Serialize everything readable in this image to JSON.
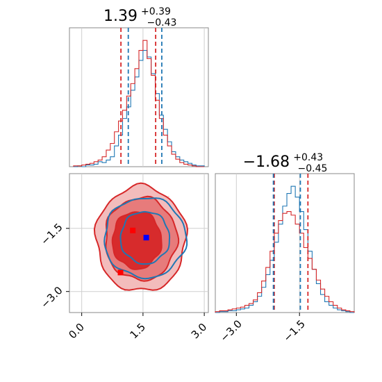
{
  "chart_data": [
    {
      "type": "histogram",
      "panel": "top-left marginal",
      "title_value": "1.39",
      "title_upper": "+0.39",
      "title_lower": "−0.43",
      "xlim": [
        -0.3,
        3.1
      ],
      "grid": true,
      "series": [
        {
          "color": "#1f77b4",
          "bin_edges": [
            -0.2,
            -0.1,
            0.0,
            0.1,
            0.2,
            0.3,
            0.4,
            0.5,
            0.6,
            0.7,
            0.8,
            0.9,
            1.0,
            1.1,
            1.2,
            1.3,
            1.4,
            1.5,
            1.6,
            1.7,
            1.8,
            1.9,
            2.0,
            2.1,
            2.2,
            2.3,
            2.4,
            2.5,
            2.6,
            2.7,
            2.8,
            2.9,
            3.0
          ],
          "counts": [
            0,
            1,
            0,
            2,
            2,
            3,
            6,
            5,
            8,
            12,
            25,
            38,
            58,
            72,
            92,
            108,
            128,
            140,
            132,
            112,
            88,
            62,
            45,
            30,
            18,
            12,
            8,
            6,
            4,
            2,
            1,
            1
          ]
        },
        {
          "color": "#d62728",
          "bin_edges": [
            -0.2,
            -0.1,
            0.0,
            0.1,
            0.2,
            0.3,
            0.4,
            0.5,
            0.6,
            0.7,
            0.8,
            0.9,
            1.0,
            1.1,
            1.2,
            1.3,
            1.4,
            1.5,
            1.6,
            1.7,
            1.8,
            1.9,
            2.0,
            2.1,
            2.2,
            2.3,
            2.4,
            2.5,
            2.6,
            2.7,
            2.8,
            2.9,
            3.0
          ],
          "counts": [
            1,
            1,
            2,
            3,
            4,
            6,
            8,
            12,
            20,
            28,
            42,
            55,
            68,
            85,
            100,
            118,
            140,
            152,
            130,
            110,
            80,
            58,
            38,
            25,
            15,
            9,
            5,
            3,
            2,
            1,
            0,
            0
          ]
        }
      ],
      "quantile_lines": [
        {
          "color": "#d62728",
          "x": 0.96
        },
        {
          "color": "#1f77b4",
          "x": 1.14
        },
        {
          "color": "#d62728",
          "x": 1.81
        },
        {
          "color": "#1f77b4",
          "x": 1.96
        }
      ]
    },
    {
      "type": "histogram",
      "panel": "bottom-right marginal",
      "title_value": "−1.68",
      "title_upper": "+0.43",
      "title_lower": "−0.45",
      "xlim": [
        -3.5,
        -0.2
      ],
      "xticks": [
        -3.0,
        -1.5
      ],
      "xtick_labels": [
        "−3.0",
        "−1.5"
      ],
      "grid": true,
      "series": [
        {
          "color": "#1f77b4",
          "bin_edges": [
            -3.5,
            -3.4,
            -3.3,
            -3.2,
            -3.1,
            -3.0,
            -2.9,
            -2.8,
            -2.7,
            -2.6,
            -2.5,
            -2.4,
            -2.3,
            -2.2,
            -2.1,
            -2.0,
            -1.9,
            -1.8,
            -1.7,
            -1.6,
            -1.5,
            -1.4,
            -1.3,
            -1.2,
            -1.1,
            -1.0,
            -0.9,
            -0.8,
            -0.7,
            -0.6,
            -0.5,
            -0.4,
            -0.3,
            -0.2
          ],
          "counts": [
            0,
            1,
            1,
            2,
            2,
            3,
            4,
            5,
            8,
            12,
            18,
            28,
            42,
            58,
            78,
            98,
            118,
            132,
            140,
            128,
            112,
            92,
            68,
            48,
            32,
            20,
            12,
            8,
            5,
            3,
            2,
            1,
            0
          ]
        },
        {
          "color": "#d62728",
          "bin_edges": [
            -3.5,
            -3.4,
            -3.3,
            -3.2,
            -3.1,
            -3.0,
            -2.9,
            -2.8,
            -2.7,
            -2.6,
            -2.5,
            -2.4,
            -2.3,
            -2.2,
            -2.1,
            -2.0,
            -1.9,
            -1.8,
            -1.7,
            -1.6,
            -1.5,
            -1.4,
            -1.3,
            -1.2,
            -1.1,
            -1.0,
            -0.9,
            -0.8,
            -0.7,
            -0.6,
            -0.5,
            -0.4,
            -0.3,
            -0.2
          ],
          "counts": [
            1,
            2,
            2,
            3,
            4,
            5,
            6,
            8,
            10,
            14,
            22,
            35,
            50,
            68,
            88,
            102,
            110,
            112,
            108,
            98,
            88,
            72,
            60,
            48,
            36,
            26,
            18,
            12,
            8,
            5,
            3,
            2,
            1
          ]
        }
      ],
      "quantile_lines": [
        {
          "color": "#d62728",
          "x": -2.1
        },
        {
          "color": "#1f77b4",
          "x": -2.12
        },
        {
          "color": "#1f77b4",
          "x": -1.48
        },
        {
          "color": "#d62728",
          "x": -1.3
        }
      ]
    },
    {
      "type": "contour",
      "panel": "bottom-left joint",
      "xlim": [
        -0.3,
        3.1
      ],
      "ylim": [
        -3.5,
        -0.2
      ],
      "xticks": [
        0.0,
        1.5,
        3.0
      ],
      "xtick_labels": [
        "0.0",
        "1.5",
        "3.0"
      ],
      "yticks": [
        -1.5,
        -3.0
      ],
      "ytick_labels": [
        "−1.5",
        "−3.0"
      ],
      "grid": true,
      "series": [
        {
          "color": "#d62728",
          "fill_levels": [
            "#f2b8b8",
            "#e67777",
            "#d62728"
          ],
          "contours": [
            {
              "cx": 1.45,
              "cy": -1.75,
              "rx": 1.1,
              "ry": 1.25
            },
            {
              "cx": 1.45,
              "cy": -1.75,
              "rx": 0.88,
              "ry": 0.98
            },
            {
              "cx": 1.35,
              "cy": -1.78,
              "rx": 0.6,
              "ry": 0.68
            }
          ],
          "markers": [
            {
              "x": 1.25,
              "y": -1.55
            },
            {
              "x": 0.95,
              "y": -2.55
            }
          ]
        },
        {
          "color": "#1f77b4",
          "contours": [
            {
              "cx": 1.55,
              "cy": -1.72,
              "rx": 1.0,
              "ry": 0.95
            },
            {
              "cx": 1.55,
              "cy": -1.72,
              "rx": 0.6,
              "ry": 0.62
            }
          ],
          "markers": [
            {
              "x": 1.58,
              "y": -1.72
            }
          ]
        }
      ]
    }
  ]
}
